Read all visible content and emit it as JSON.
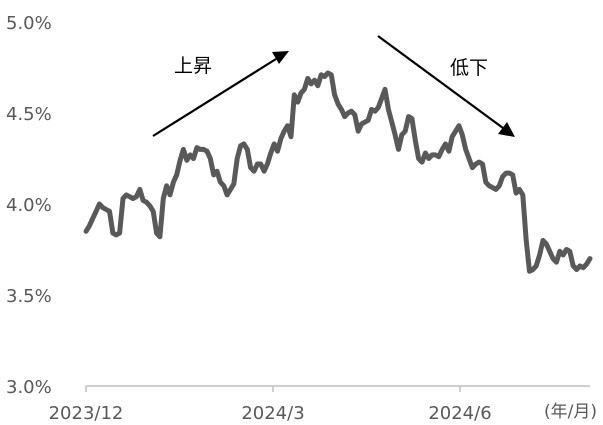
{
  "chart_data": {
    "type": "line",
    "x_tick_labels": [
      "2023/12",
      "2024/3",
      "2024/6"
    ],
    "x_unit_label": "(年/月)",
    "y_tick_labels": [
      "3.0%",
      "3.5%",
      "4.0%",
      "4.5%",
      "5.0%"
    ],
    "ylim": [
      3.0,
      5.0
    ],
    "y_ticks": [
      3.0,
      3.5,
      4.0,
      4.5,
      5.0
    ],
    "grid": false,
    "annotations": [
      {
        "text": "上昇",
        "arrow": "rising"
      },
      {
        "text": "低下",
        "arrow": "falling"
      }
    ],
    "colors": {
      "line": "#595959",
      "axis": "#bfbfbf",
      "text": "#595959"
    },
    "series": [
      {
        "values": [
          3.85,
          3.88,
          3.92,
          3.96,
          4.0,
          3.98,
          3.97,
          3.96,
          3.84,
          3.83,
          3.84,
          4.03,
          4.05,
          4.04,
          4.03,
          4.04,
          4.08,
          4.02,
          4.01,
          3.99,
          3.96,
          3.84,
          3.82,
          4.03,
          4.1,
          4.05,
          4.12,
          4.16,
          4.24,
          4.3,
          4.24,
          4.27,
          4.25,
          4.31,
          4.3,
          4.3,
          4.29,
          4.25,
          4.16,
          4.18,
          4.12,
          4.1,
          4.05,
          4.08,
          4.11,
          4.25,
          4.32,
          4.33,
          4.3,
          4.2,
          4.18,
          4.22,
          4.22,
          4.18,
          4.22,
          4.28,
          4.33,
          4.29,
          4.36,
          4.4,
          4.43,
          4.37,
          4.6,
          4.56,
          4.61,
          4.63,
          4.69,
          4.66,
          4.68,
          4.65,
          4.71,
          4.7,
          4.72,
          4.71,
          4.6,
          4.55,
          4.52,
          4.48,
          4.5,
          4.51,
          4.49,
          4.4,
          4.44,
          4.45,
          4.46,
          4.52,
          4.51,
          4.53,
          4.58,
          4.63,
          4.52,
          4.45,
          4.38,
          4.3,
          4.38,
          4.4,
          4.48,
          4.47,
          4.35,
          4.25,
          4.23,
          4.28,
          4.25,
          4.27,
          4.27,
          4.26,
          4.3,
          4.33,
          4.29,
          4.37,
          4.4,
          4.43,
          4.38,
          4.3,
          4.25,
          4.2,
          4.22,
          4.23,
          4.22,
          4.12,
          4.1,
          4.09,
          4.08,
          4.1,
          4.15,
          4.17,
          4.17,
          4.16,
          4.06,
          4.08,
          4.05,
          3.8,
          3.63,
          3.64,
          3.66,
          3.72,
          3.8,
          3.78,
          3.74,
          3.7,
          3.68,
          3.74,
          3.72,
          3.75,
          3.74,
          3.66,
          3.64,
          3.66,
          3.65,
          3.67,
          3.7
        ]
      }
    ]
  }
}
